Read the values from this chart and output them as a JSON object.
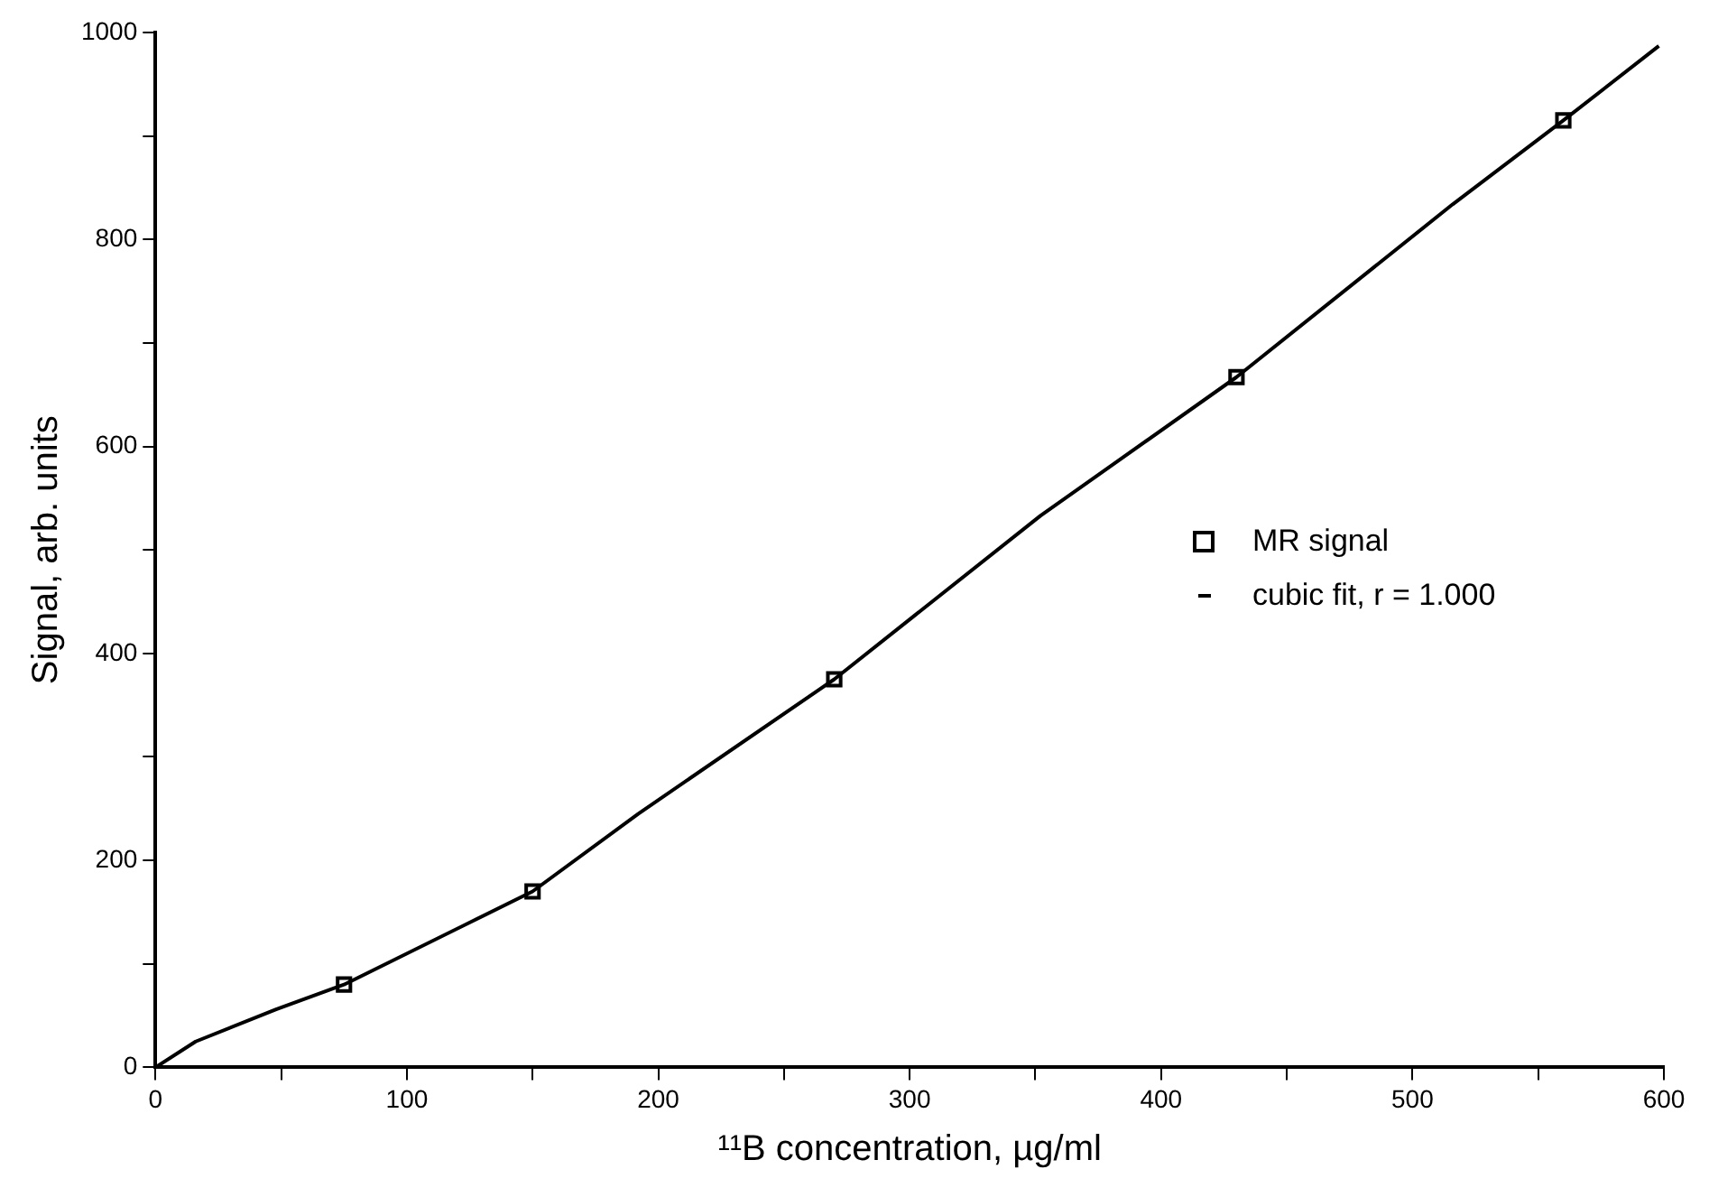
{
  "chart_data": {
    "type": "scatter",
    "xlabel": "¹¹B concentration, µg/ml",
    "ylabel": "Signal, arb. units",
    "xlim": [
      0,
      600
    ],
    "ylim": [
      0,
      1000
    ],
    "xticks": [
      0,
      {
        "value": 50,
        "label": null
      },
      100,
      {
        "value": 150,
        "label": null
      },
      200,
      {
        "value": 250,
        "label": null
      },
      300,
      {
        "value": 350,
        "label": null
      },
      400,
      {
        "value": 450,
        "label": null
      },
      500,
      {
        "value": 550,
        "label": null
      },
      600
    ],
    "yticks": [
      0,
      {
        "value": 100,
        "label": null
      },
      200,
      {
        "value": 300,
        "label": null
      },
      400,
      {
        "value": 500,
        "label": null
      },
      600,
      {
        "value": 700,
        "label": null
      },
      800,
      {
        "value": 900,
        "label": null
      },
      1000
    ],
    "grid": false,
    "legend": "right",
    "series": [
      {
        "name": "MR signal",
        "marker": "square",
        "color": "#000000",
        "x": [
          75,
          150,
          270,
          430,
          560
        ],
        "values": [
          80,
          170,
          375,
          667,
          915
        ]
      },
      {
        "name": "cubic fit, r = 1.000",
        "type": "line",
        "marker": "none",
        "line_style": "solid",
        "color": "#000000",
        "x": [
          0,
          16,
          48,
          75,
          150,
          192,
          270,
          352,
          430,
          516,
          560,
          598
        ],
        "values": [
          0,
          25,
          56,
          80,
          170,
          245,
          375,
          533,
          667,
          834,
          915,
          987
        ]
      }
    ]
  }
}
